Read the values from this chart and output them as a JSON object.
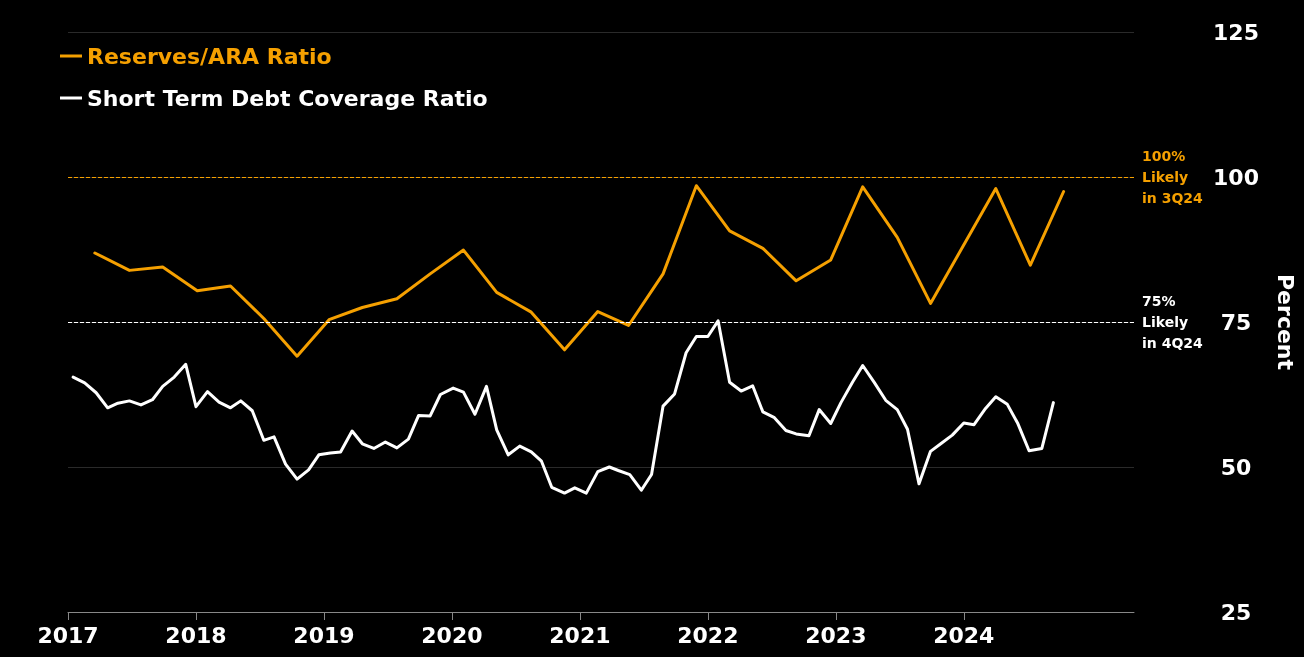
{
  "chart_data": {
    "type": "line",
    "ylabel": "Percent",
    "legend": "top left",
    "grid": "y",
    "marker": "none",
    "line_style": "solid",
    "xlim": [
      2017,
      2025.33
    ],
    "xticks": [
      2017,
      2018,
      2019,
      2020,
      2021,
      2022,
      2023,
      2024
    ],
    "ylim": [
      25,
      125
    ],
    "yticks": [
      25,
      50,
      75,
      100,
      125
    ],
    "series": [
      {
        "name": "Reserves/ARA Ratio",
        "color": "#f5a000",
        "x": [
          2017.21,
          2017.48,
          2017.74,
          2018.01,
          2018.27,
          2018.53,
          2018.79,
          2019.04,
          2019.3,
          2019.57,
          2019.83,
          2020.09,
          2020.35,
          2020.62,
          2020.88,
          2021.14,
          2021.38,
          2021.65,
          2021.91,
          2022.17,
          2022.43,
          2022.69,
          2022.96,
          2023.21,
          2023.48,
          2023.74,
          2024.25,
          2024.52,
          2024.78
        ],
        "values": [
          86.9,
          83.9,
          84.5,
          80.4,
          81.2,
          75.6,
          69.1,
          75.4,
          77.5,
          79.0,
          83.3,
          87.4,
          80.1,
          76.7,
          70.2,
          76.8,
          74.4,
          83.3,
          98.5,
          90.7,
          87.7,
          82.1,
          85.7,
          98.3,
          89.6,
          78.2,
          98.0,
          84.8,
          97.5
        ]
      },
      {
        "name": "Short Term Debt Coverage Ratio",
        "color": "#ffffff",
        "x": [
          2017.04,
          2017.13,
          2017.22,
          2017.31,
          2017.39,
          2017.48,
          2017.57,
          2017.66,
          2017.74,
          2017.83,
          2017.92,
          2018.0,
          2018.09,
          2018.18,
          2018.27,
          2018.35,
          2018.44,
          2018.53,
          2018.61,
          2018.7,
          2018.79,
          2018.88,
          2018.96,
          2019.05,
          2019.13,
          2019.22,
          2019.3,
          2019.39,
          2019.48,
          2019.57,
          2019.66,
          2019.74,
          2019.83,
          2019.91,
          2020.01,
          2020.09,
          2020.18,
          2020.27,
          2020.35,
          2020.44,
          2020.53,
          2020.62,
          2020.7,
          2020.78,
          2020.88,
          2020.96,
          2021.05,
          2021.14,
          2021.23,
          2021.3,
          2021.39,
          2021.48,
          2021.56,
          2021.65,
          2021.74,
          2021.83,
          2021.91,
          2022.0,
          2022.08,
          2022.17,
          2022.26,
          2022.35,
          2022.43,
          2022.52,
          2022.61,
          2022.69,
          2022.79,
          2022.87,
          2022.96,
          2023.04,
          2023.13,
          2023.21,
          2023.3,
          2023.39,
          2023.48,
          2023.56,
          2023.65,
          2023.74,
          2023.82,
          2023.91,
          2024.0,
          2024.08,
          2024.17,
          2024.25,
          2024.34,
          2024.42,
          2024.51,
          2024.61,
          2024.7
        ],
        "values": [
          65.5,
          64.5,
          62.8,
          60.2,
          61.0,
          61.4,
          60.7,
          61.6,
          63.9,
          65.5,
          67.7,
          60.4,
          63.0,
          61.2,
          60.2,
          61.4,
          59.7,
          54.6,
          55.2,
          50.5,
          47.9,
          49.5,
          52.1,
          52.4,
          52.6,
          56.2,
          54.0,
          53.2,
          54.3,
          53.3,
          54.8,
          58.9,
          58.8,
          62.5,
          63.6,
          62.9,
          59.1,
          63.9,
          56.4,
          52.1,
          53.6,
          52.6,
          51.0,
          46.5,
          45.5,
          46.4,
          45.5,
          49.2,
          50.0,
          49.4,
          48.7,
          46.0,
          48.7,
          60.5,
          62.6,
          69.7,
          72.5,
          72.5,
          75.2,
          64.6,
          63.1,
          64.0,
          59.5,
          58.5,
          56.3,
          55.7,
          55.4,
          59.9,
          57.5,
          61.1,
          64.6,
          67.5,
          64.6,
          61.5,
          59.9,
          56.5,
          47.1,
          52.7,
          54.0,
          55.5,
          57.6,
          57.3,
          60.1,
          62.1,
          60.8,
          57.6,
          52.8,
          53.2,
          61.1
        ]
      }
    ],
    "ref_lines": [
      {
        "axis": "y",
        "value": 100,
        "label": "100%\nLikely\nin 3Q24",
        "color": "#f5a000",
        "line_style": "dashed"
      },
      {
        "axis": "y",
        "value": 75,
        "label": "75%\nLikely\nin 4Q24",
        "color": "#ffffff",
        "line_style": "dashed"
      }
    ]
  }
}
